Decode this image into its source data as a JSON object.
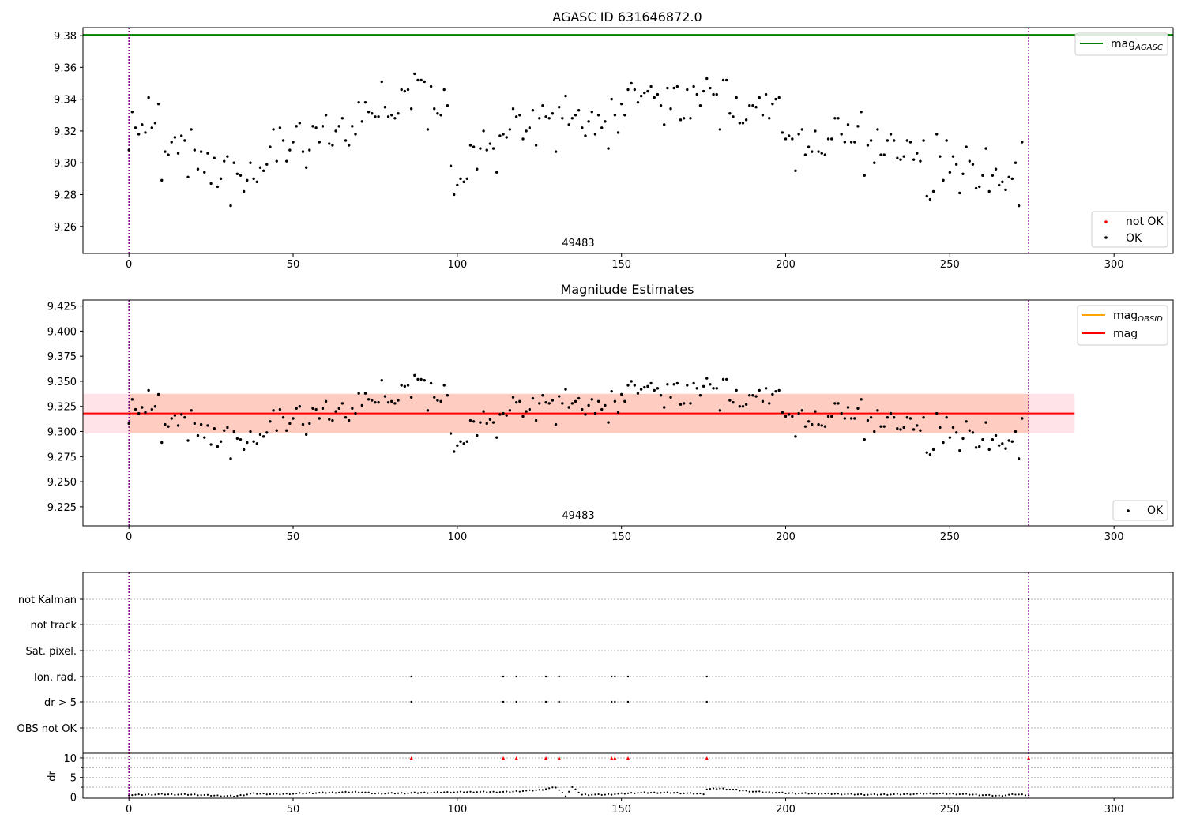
{
  "figure": {
    "panel1_title": "AGASC ID 631646872.0",
    "panel2_title": "Magnitude Estimates",
    "obsid_label": "49483",
    "legend1": {
      "line": "mag",
      "line_sub": "AGASC",
      "not_ok": "not OK",
      "ok": "OK"
    },
    "legend2": {
      "line1": "mag",
      "line1_sub": "OBSID",
      "line2": "mag",
      "ok": "OK"
    }
  },
  "colors": {
    "agasc_line": "#008000",
    "obsid_line": "#ffa500",
    "mag_line": "#ff0000",
    "obs_boundary": "#800080",
    "band_outer": "#ffc0cb",
    "band_inner": "#ffa07a",
    "points_ok": "#000000",
    "points_not_ok": "#ff0000"
  },
  "chart_data": [
    {
      "type": "scatter",
      "title": "AGASC ID 631646872.0",
      "xlim": [
        -14,
        318
      ],
      "ylim": [
        9.243,
        9.385
      ],
      "xticks": [
        0,
        50,
        100,
        150,
        200,
        250,
        300
      ],
      "yticks": [
        9.26,
        9.28,
        9.3,
        9.32,
        9.34,
        9.36,
        9.38
      ],
      "ytick_labels": [
        "9.26",
        "9.28",
        "9.30",
        "9.32",
        "9.34",
        "9.36",
        "9.38"
      ],
      "hlines": [
        {
          "name": "mag_AGASC",
          "y": 9.3805,
          "color": "#008000"
        }
      ],
      "vlines": [
        0,
        274
      ],
      "annotation": {
        "x": 131,
        "text": "49483"
      },
      "legend_line": "top-right",
      "legend_points": "bottom-right",
      "series": [
        {
          "name": "OK",
          "points": "mag_points"
        }
      ],
      "grid": false
    },
    {
      "type": "scatter",
      "title": "Magnitude Estimates",
      "xlim": [
        -14,
        318
      ],
      "ylim": [
        9.206,
        9.431
      ],
      "xticks": [
        0,
        50,
        100,
        150,
        200,
        250,
        300
      ],
      "yticks": [
        9.225,
        9.25,
        9.275,
        9.3,
        9.325,
        9.35,
        9.375,
        9.4,
        9.425
      ],
      "ytick_labels": [
        "9.225",
        "9.250",
        "9.275",
        "9.300",
        "9.325",
        "9.350",
        "9.375",
        "9.400",
        "9.425"
      ],
      "band_outer": [
        9.2985,
        9.3375
      ],
      "band_inner": [
        9.2985,
        9.3375
      ],
      "band_x": [
        -14,
        288
      ],
      "hlines": [
        {
          "name": "mag",
          "y": 9.318,
          "color": "#ff0000"
        }
      ],
      "vlines": [
        0,
        274
      ],
      "annotation": {
        "x": 131,
        "text": "49483"
      },
      "legend_line": "top-right",
      "legend_points": "bottom-right",
      "series": [
        {
          "name": "OK",
          "points": "mag_points"
        }
      ],
      "grid": false
    },
    {
      "type": "scatter",
      "xlim": [
        -14,
        318
      ],
      "xticks": [
        0,
        50,
        100,
        150,
        200,
        250,
        300
      ],
      "flag_categories": [
        "not Kalman",
        "not track",
        "Sat. pixel.",
        "Ion. rad.",
        "dr > 5",
        "OBS not OK"
      ],
      "flag_points": {
        "not Kalman": [
          274
        ],
        "not track": [],
        "Sat. pixel.": [],
        "Ion. rad.": [
          86,
          114,
          118,
          127,
          131,
          147,
          148,
          152,
          176
        ],
        "dr > 5": [
          86,
          114,
          118,
          127,
          131,
          147,
          148,
          152,
          176
        ],
        "OBS not OK": []
      },
      "dr_ylabel": "dr",
      "dr_yticks": [
        0,
        5,
        10
      ],
      "dr_ylim": [
        -0.3,
        11
      ],
      "dr_clipped": [
        86,
        114,
        118,
        127,
        131,
        147,
        148,
        152,
        176,
        274
      ],
      "dr_anchors": [
        [
          0,
          0.5
        ],
        [
          10,
          0.7
        ],
        [
          20,
          0.6
        ],
        [
          25,
          0.4
        ],
        [
          32,
          0.2
        ],
        [
          38,
          0.9
        ],
        [
          45,
          0.7
        ],
        [
          55,
          1.0
        ],
        [
          70,
          1.3
        ],
        [
          75,
          0.9
        ],
        [
          85,
          1.0
        ],
        [
          95,
          1.2
        ],
        [
          105,
          1.3
        ],
        [
          115,
          1.3
        ],
        [
          125,
          1.8
        ],
        [
          130,
          2.5
        ],
        [
          133,
          0.3
        ],
        [
          135,
          2.5
        ],
        [
          138,
          0.6
        ],
        [
          145,
          0.6
        ],
        [
          155,
          1.1
        ],
        [
          165,
          1.1
        ],
        [
          175,
          0.8
        ],
        [
          176,
          2.0
        ],
        [
          180,
          2.2
        ],
        [
          190,
          1.4
        ],
        [
          200,
          1.0
        ],
        [
          215,
          0.8
        ],
        [
          225,
          0.6
        ],
        [
          235,
          0.7
        ],
        [
          245,
          0.9
        ],
        [
          255,
          0.7
        ],
        [
          265,
          0.3
        ],
        [
          270,
          0.7
        ],
        [
          274,
          0.5
        ]
      ],
      "grid": "horizontal dotted"
    }
  ],
  "mag_points": [
    [
      0,
      9.308
    ],
    [
      1,
      9.332
    ],
    [
      2,
      9.322
    ],
    [
      3,
      9.318
    ],
    [
      4,
      9.324
    ],
    [
      5,
      9.319
    ],
    [
      6,
      9.341
    ],
    [
      7,
      9.322
    ],
    [
      8,
      9.325
    ],
    [
      9,
      9.337
    ],
    [
      10,
      9.289
    ],
    [
      11,
      9.307
    ],
    [
      12,
      9.305
    ],
    [
      13,
      9.313
    ],
    [
      14,
      9.316
    ],
    [
      15,
      9.306
    ],
    [
      16,
      9.317
    ],
    [
      17,
      9.314
    ],
    [
      18,
      9.291
    ],
    [
      19,
      9.321
    ],
    [
      20,
      9.308
    ],
    [
      21,
      9.296
    ],
    [
      22,
      9.307
    ],
    [
      23,
      9.294
    ],
    [
      24,
      9.306
    ],
    [
      25,
      9.287
    ],
    [
      26,
      9.303
    ],
    [
      27,
      9.285
    ],
    [
      28,
      9.29
    ],
    [
      29,
      9.301
    ],
    [
      30,
      9.304
    ],
    [
      31,
      9.273
    ],
    [
      32,
      9.3
    ],
    [
      33,
      9.293
    ],
    [
      34,
      9.292
    ],
    [
      35,
      9.282
    ],
    [
      36,
      9.289
    ],
    [
      37,
      9.3
    ],
    [
      38,
      9.29
    ],
    [
      39,
      9.288
    ],
    [
      40,
      9.297
    ],
    [
      41,
      9.295
    ],
    [
      42,
      9.299
    ],
    [
      43,
      9.31
    ],
    [
      44,
      9.321
    ],
    [
      45,
      9.301
    ],
    [
      46,
      9.322
    ],
    [
      47,
      9.314
    ],
    [
      48,
      9.301
    ],
    [
      49,
      9.308
    ],
    [
      50,
      9.313
    ],
    [
      51,
      9.323
    ],
    [
      52,
      9.325
    ],
    [
      53,
      9.307
    ],
    [
      54,
      9.297
    ],
    [
      55,
      9.308
    ],
    [
      56,
      9.323
    ],
    [
      57,
      9.322
    ],
    [
      58,
      9.313
    ],
    [
      59,
      9.323
    ],
    [
      60,
      9.33
    ],
    [
      61,
      9.312
    ],
    [
      62,
      9.311
    ],
    [
      63,
      9.32
    ],
    [
      64,
      9.323
    ],
    [
      65,
      9.328
    ],
    [
      66,
      9.314
    ],
    [
      67,
      9.311
    ],
    [
      68,
      9.323
    ],
    [
      69,
      9.318
    ],
    [
      70,
      9.338
    ],
    [
      71,
      9.326
    ],
    [
      72,
      9.338
    ],
    [
      73,
      9.332
    ],
    [
      74,
      9.331
    ],
    [
      75,
      9.329
    ],
    [
      76,
      9.329
    ],
    [
      77,
      9.351
    ],
    [
      78,
      9.335
    ],
    [
      79,
      9.329
    ],
    [
      80,
      9.33
    ],
    [
      81,
      9.328
    ],
    [
      82,
      9.331
    ],
    [
      83,
      9.346
    ],
    [
      84,
      9.345
    ],
    [
      85,
      9.346
    ],
    [
      86,
      9.334
    ],
    [
      87,
      9.356
    ],
    [
      88,
      9.352
    ],
    [
      89,
      9.352
    ],
    [
      90,
      9.351
    ],
    [
      91,
      9.321
    ],
    [
      92,
      9.348
    ],
    [
      93,
      9.334
    ],
    [
      94,
      9.331
    ],
    [
      95,
      9.33
    ],
    [
      96,
      9.346
    ],
    [
      97,
      9.336
    ],
    [
      98,
      9.298
    ],
    [
      99,
      9.28
    ],
    [
      100,
      9.286
    ],
    [
      101,
      9.29
    ],
    [
      102,
      9.288
    ],
    [
      103,
      9.29
    ],
    [
      104,
      9.311
    ],
    [
      105,
      9.31
    ],
    [
      106,
      9.296
    ],
    [
      107,
      9.309
    ],
    [
      108,
      9.32
    ],
    [
      109,
      9.308
    ],
    [
      110,
      9.312
    ],
    [
      111,
      9.309
    ],
    [
      112,
      9.294
    ],
    [
      113,
      9.317
    ],
    [
      114,
      9.318
    ],
    [
      115,
      9.316
    ],
    [
      116,
      9.321
    ],
    [
      117,
      9.334
    ],
    [
      118,
      9.329
    ],
    [
      119,
      9.33
    ],
    [
      120,
      9.315
    ],
    [
      121,
      9.32
    ],
    [
      122,
      9.322
    ],
    [
      123,
      9.333
    ],
    [
      124,
      9.311
    ],
    [
      125,
      9.328
    ],
    [
      126,
      9.336
    ],
    [
      127,
      9.329
    ],
    [
      128,
      9.328
    ],
    [
      129,
      9.331
    ],
    [
      130,
      9.307
    ],
    [
      131,
      9.335
    ],
    [
      132,
      9.328
    ],
    [
      133,
      9.342
    ],
    [
      134,
      9.324
    ],
    [
      135,
      9.328
    ],
    [
      136,
      9.33
    ],
    [
      137,
      9.333
    ],
    [
      138,
      9.322
    ],
    [
      139,
      9.317
    ],
    [
      140,
      9.326
    ],
    [
      141,
      9.332
    ],
    [
      142,
      9.318
    ],
    [
      143,
      9.33
    ],
    [
      144,
      9.322
    ],
    [
      145,
      9.326
    ],
    [
      146,
      9.309
    ],
    [
      147,
      9.34
    ],
    [
      148,
      9.33
    ],
    [
      149,
      9.319
    ],
    [
      150,
      9.337
    ],
    [
      151,
      9.33
    ],
    [
      152,
      9.346
    ],
    [
      153,
      9.35
    ],
    [
      154,
      9.346
    ],
    [
      155,
      9.338
    ],
    [
      156,
      9.342
    ],
    [
      157,
      9.344
    ],
    [
      158,
      9.345
    ],
    [
      159,
      9.348
    ],
    [
      160,
      9.341
    ],
    [
      161,
      9.343
    ],
    [
      162,
      9.336
    ],
    [
      163,
      9.324
    ],
    [
      164,
      9.347
    ],
    [
      165,
      9.334
    ],
    [
      166,
      9.347
    ],
    [
      167,
      9.348
    ],
    [
      168,
      9.327
    ],
    [
      169,
      9.328
    ],
    [
      170,
      9.346
    ],
    [
      171,
      9.328
    ],
    [
      172,
      9.348
    ],
    [
      173,
      9.343
    ],
    [
      174,
      9.336
    ],
    [
      175,
      9.345
    ],
    [
      176,
      9.353
    ],
    [
      177,
      9.347
    ],
    [
      178,
      9.343
    ],
    [
      179,
      9.343
    ],
    [
      180,
      9.321
    ],
    [
      181,
      9.352
    ],
    [
      182,
      9.352
    ],
    [
      183,
      9.331
    ],
    [
      184,
      9.329
    ],
    [
      185,
      9.341
    ],
    [
      186,
      9.325
    ],
    [
      187,
      9.325
    ],
    [
      188,
      9.327
    ],
    [
      189,
      9.336
    ],
    [
      190,
      9.336
    ],
    [
      191,
      9.335
    ],
    [
      192,
      9.341
    ],
    [
      193,
      9.33
    ],
    [
      194,
      9.343
    ],
    [
      195,
      9.328
    ],
    [
      196,
      9.337
    ],
    [
      197,
      9.34
    ],
    [
      198,
      9.341
    ],
    [
      199,
      9.319
    ],
    [
      200,
      9.315
    ],
    [
      201,
      9.317
    ],
    [
      202,
      9.315
    ],
    [
      203,
      9.295
    ],
    [
      204,
      9.318
    ],
    [
      205,
      9.321
    ],
    [
      206,
      9.305
    ],
    [
      207,
      9.31
    ],
    [
      208,
      9.307
    ],
    [
      209,
      9.32
    ],
    [
      210,
      9.307
    ],
    [
      211,
      9.306
    ],
    [
      212,
      9.305
    ],
    [
      213,
      9.315
    ],
    [
      214,
      9.315
    ],
    [
      215,
      9.328
    ],
    [
      216,
      9.328
    ],
    [
      217,
      9.318
    ],
    [
      218,
      9.313
    ],
    [
      219,
      9.324
    ],
    [
      220,
      9.313
    ],
    [
      221,
      9.313
    ],
    [
      222,
      9.323
    ],
    [
      223,
      9.332
    ],
    [
      224,
      9.292
    ],
    [
      225,
      9.311
    ],
    [
      226,
      9.314
    ],
    [
      227,
      9.3
    ],
    [
      228,
      9.321
    ],
    [
      229,
      9.305
    ],
    [
      230,
      9.305
    ],
    [
      231,
      9.314
    ],
    [
      232,
      9.318
    ],
    [
      233,
      9.314
    ],
    [
      234,
      9.303
    ],
    [
      235,
      9.302
    ],
    [
      236,
      9.304
    ],
    [
      237,
      9.314
    ],
    [
      238,
      9.313
    ],
    [
      239,
      9.302
    ],
    [
      240,
      9.306
    ],
    [
      241,
      9.301
    ],
    [
      242,
      9.314
    ],
    [
      243,
      9.279
    ],
    [
      244,
      9.277
    ],
    [
      245,
      9.282
    ],
    [
      246,
      9.318
    ],
    [
      247,
      9.304
    ],
    [
      248,
      9.289
    ],
    [
      249,
      9.314
    ],
    [
      250,
      9.294
    ],
    [
      251,
      9.304
    ],
    [
      252,
      9.299
    ],
    [
      253,
      9.281
    ],
    [
      254,
      9.293
    ],
    [
      255,
      9.31
    ],
    [
      256,
      9.301
    ],
    [
      257,
      9.299
    ],
    [
      258,
      9.284
    ],
    [
      259,
      9.285
    ],
    [
      260,
      9.292
    ],
    [
      261,
      9.309
    ],
    [
      262,
      9.282
    ],
    [
      263,
      9.292
    ],
    [
      264,
      9.296
    ],
    [
      265,
      9.286
    ],
    [
      266,
      9.288
    ],
    [
      267,
      9.283
    ],
    [
      268,
      9.291
    ],
    [
      269,
      9.29
    ],
    [
      270,
      9.3
    ],
    [
      271,
      9.273
    ],
    [
      272,
      9.313
    ]
  ]
}
